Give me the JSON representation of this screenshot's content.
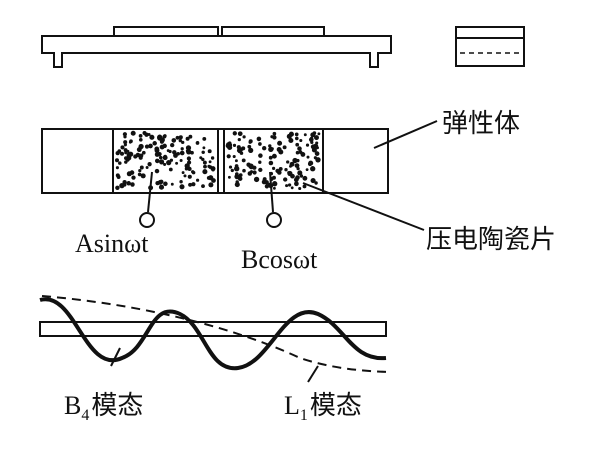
{
  "labels": {
    "elastic_body": "弹性体",
    "piezo_ceramic": "压电陶瓷片",
    "signal_a": "Asinωt",
    "signal_b": "Bcosωt",
    "mode_b_main": "B",
    "mode_b_sub": "4",
    "mode_b_suffix": "模态",
    "mode_l_main": "L",
    "mode_l_sub": "1",
    "mode_l_suffix": "模态"
  },
  "colors": {
    "line": "#111111",
    "background": "#ffffff"
  }
}
